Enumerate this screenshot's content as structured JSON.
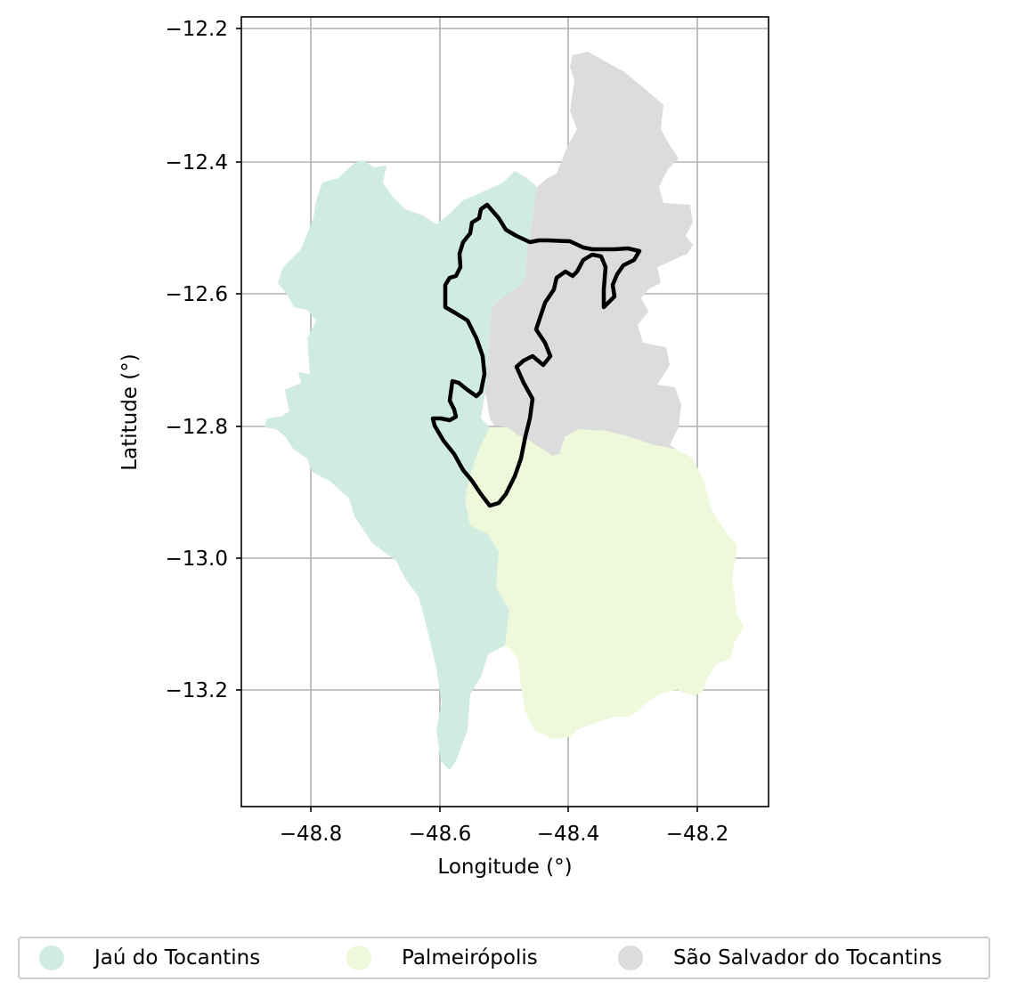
{
  "chart_data": {
    "type": "map",
    "title": "",
    "xlabel": "Longitude (°)",
    "ylabel": "Latitude (°)",
    "xlim": [
      -48.907,
      -48.107
    ],
    "ylim": [
      -13.372,
      -12.183
    ],
    "x_ticks": [
      "−48.8",
      "−48.6",
      "−48.4",
      "−48.2"
    ],
    "y_ticks": [
      "−12.2",
      "−12.4",
      "−12.6",
      "−12.8",
      "−13.0",
      "−13.2"
    ],
    "grid": true,
    "legend_position": "bottom",
    "regions": [
      {
        "name": "Jaú do Tocantins",
        "color": "#d0ebe0"
      },
      {
        "name": "Palmeirópolis",
        "color": "#eef8da"
      },
      {
        "name": "São Salvador do Tocantins",
        "color": "#dcdcdc"
      }
    ],
    "outline_color": "#000000"
  },
  "legend": {
    "items": [
      {
        "label": "Jaú do Tocantins",
        "color": "#d0ebe0"
      },
      {
        "label": "Palmeirópolis",
        "color": "#eef8da"
      },
      {
        "label": "São Salvador do Tocantins",
        "color": "#dcdcdc"
      }
    ]
  }
}
